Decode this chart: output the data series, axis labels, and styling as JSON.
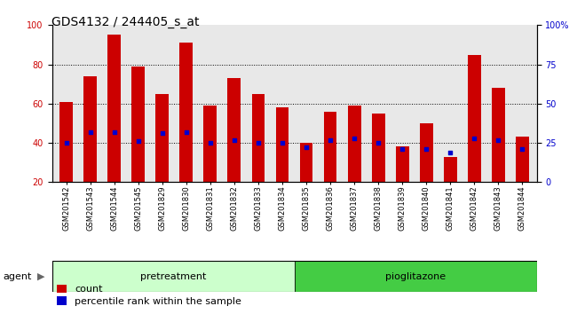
{
  "title": "GDS4132 / 244405_s_at",
  "samples": [
    "GSM201542",
    "GSM201543",
    "GSM201544",
    "GSM201545",
    "GSM201829",
    "GSM201830",
    "GSM201831",
    "GSM201832",
    "GSM201833",
    "GSM201834",
    "GSM201835",
    "GSM201836",
    "GSM201837",
    "GSM201838",
    "GSM201839",
    "GSM201840",
    "GSM201841",
    "GSM201842",
    "GSM201843",
    "GSM201844"
  ],
  "count_values": [
    61,
    74,
    95,
    79,
    65,
    91,
    59,
    73,
    65,
    58,
    40,
    56,
    59,
    55,
    38,
    50,
    33,
    85,
    68,
    43
  ],
  "percentile_values": [
    25,
    32,
    32,
    26,
    31,
    32,
    25,
    27,
    25,
    25,
    22,
    27,
    28,
    25,
    21,
    21,
    19,
    28,
    27,
    21
  ],
  "bar_color": "#cc0000",
  "dot_color": "#0000cc",
  "pretreatment_count": 10,
  "pretreatment_label": "pretreatment",
  "pioglitazone_label": "pioglitazone",
  "pretreatment_color": "#ccffcc",
  "pioglitazone_color": "#44cc44",
  "agent_label": "agent",
  "ylim_left": [
    20,
    100
  ],
  "ylim_right": [
    0,
    100
  ],
  "yticks_left": [
    20,
    40,
    60,
    80,
    100
  ],
  "yticks_right": [
    0,
    25,
    50,
    75,
    100
  ],
  "ytick_labels_right": [
    "0",
    "25",
    "50",
    "75",
    "100%"
  ],
  "legend_count": "count",
  "legend_percentile": "percentile rank within the sample",
  "plot_bg_color": "#e8e8e8",
  "grid_color": "black",
  "title_fontsize": 10,
  "tick_fontsize": 7,
  "bar_width": 0.55
}
